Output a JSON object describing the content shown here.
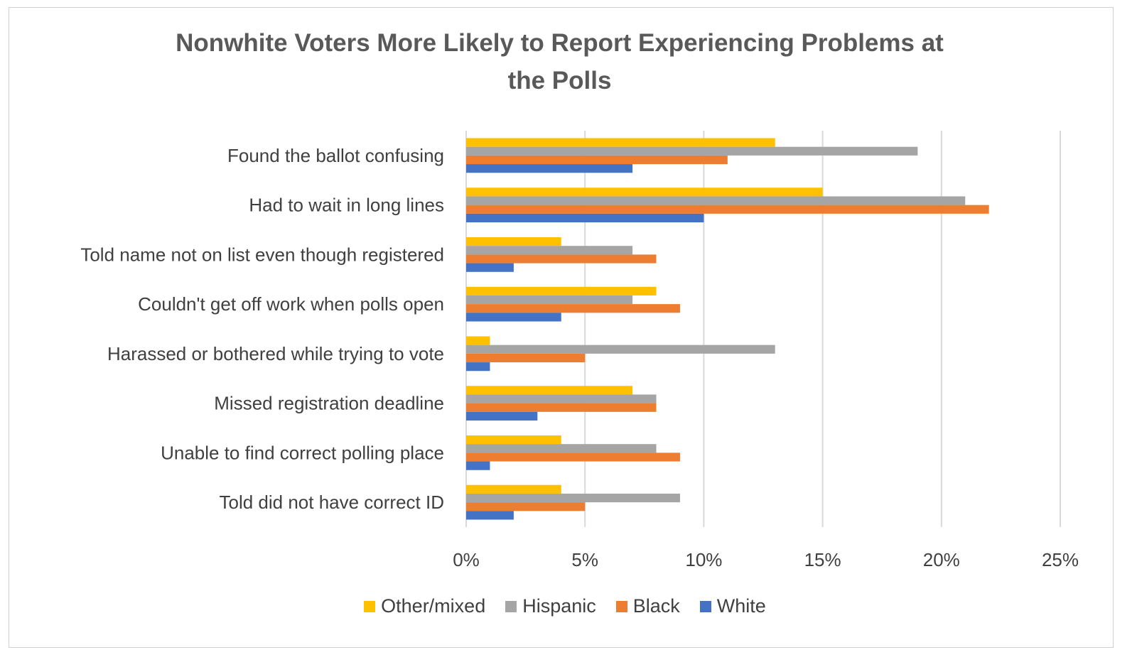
{
  "chart_data": {
    "type": "bar",
    "orientation": "horizontal",
    "title": "Nonwhite Voters More Likely to Report Experiencing Problems at the Polls",
    "title_lines": [
      "Nonwhite Voters More Likely to Report Experiencing Problems at",
      "the Polls"
    ],
    "categories": [
      "Found the ballot confusing",
      "Had to wait in long lines",
      "Told name not on list even though registered",
      "Couldn't get off work when polls open",
      "Harassed or bothered while trying to vote",
      "Missed registration deadline",
      "Unable to find correct polling place",
      "Told did not have correct ID"
    ],
    "series": [
      {
        "name": "Other/mixed",
        "color": "#FFC000",
        "values": [
          13,
          15,
          4,
          8,
          1,
          7,
          4,
          4
        ]
      },
      {
        "name": "Hispanic",
        "color": "#A5A5A5",
        "values": [
          19,
          21,
          7,
          7,
          13,
          8,
          8,
          9
        ]
      },
      {
        "name": "Black",
        "color": "#ED7D31",
        "values": [
          11,
          22,
          8,
          9,
          5,
          8,
          9,
          5
        ]
      },
      {
        "name": "White",
        "color": "#4472C4",
        "values": [
          7,
          10,
          2,
          4,
          1,
          3,
          1,
          2
        ]
      }
    ],
    "xlabel": "",
    "ylabel": "",
    "xlim": [
      0,
      25
    ],
    "xticks": [
      "0%",
      "5%",
      "10%",
      "15%",
      "20%",
      "25%"
    ],
    "grid": true,
    "legend_position": "bottom",
    "units": "percent"
  }
}
